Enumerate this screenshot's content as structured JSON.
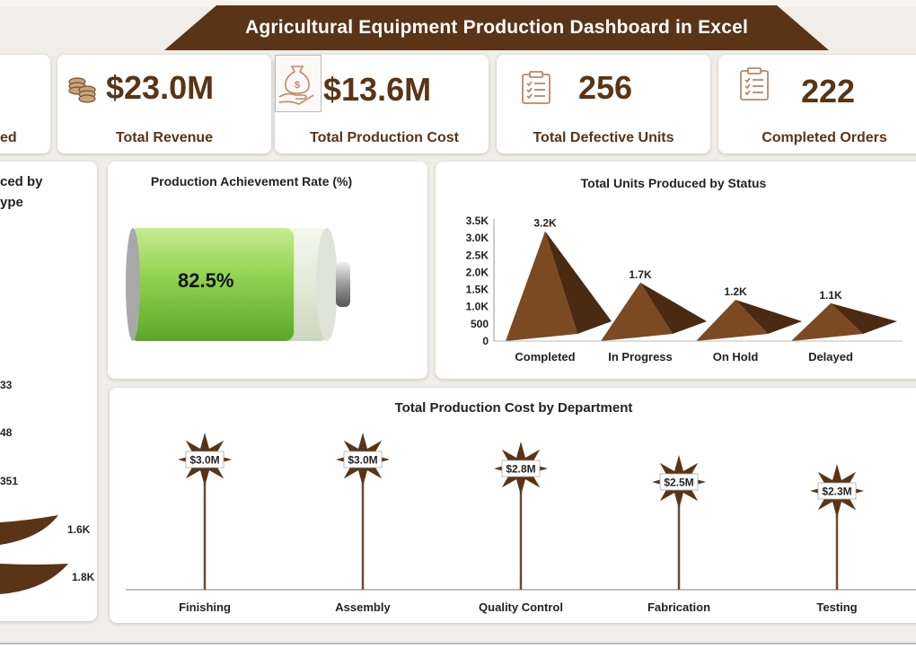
{
  "title": "Agricultural Equipment Production Dashboard in Excel",
  "kpis": [
    {
      "value": "",
      "label": "ed",
      "icon": "none"
    },
    {
      "value": "$23.0M",
      "label": "Total Revenue",
      "icon": "coins-icon"
    },
    {
      "value": "$13.6M",
      "label": "Total Production Cost",
      "icon": "money-bag-hand-icon"
    },
    {
      "value": "256",
      "label": "Total Defective Units",
      "icon": "clipboard-checklist-icon"
    },
    {
      "value": "222",
      "label": "Completed Orders",
      "icon": "clipboard-checklist-icon"
    }
  ],
  "left_panel": {
    "title_lines": [
      "ced by",
      "ype"
    ],
    "labels": [
      "33",
      "48",
      "351"
    ],
    "area_labels": [
      "1.6K",
      "1.8K"
    ]
  },
  "achievement": {
    "title": "Production Achievement Rate (%)",
    "value": 82.5,
    "value_text": "82.5%"
  },
  "colors": {
    "brown": "#5a3416",
    "pyramid_light": "#7b4a22",
    "pyramid_dark": "#4a2a10",
    "battery_green": "#8fd14f",
    "stem": "#6b4a35"
  },
  "chart_data": [
    {
      "type": "bar",
      "title": "Total Units Produced by Status",
      "categories": [
        "Completed",
        "In Progress",
        "On Hold",
        "Delayed"
      ],
      "values": [
        3200,
        1700,
        1200,
        1100
      ],
      "data_labels": [
        "3.2K",
        "1.7K",
        "1.2K",
        "1.1K"
      ],
      "ylim": [
        0,
        3500
      ],
      "yticks": [
        0,
        500,
        1000,
        1500,
        2000,
        2500,
        3000,
        3500
      ],
      "ytick_labels": [
        "0",
        "500",
        "1.0K",
        "1.5K",
        "2.0K",
        "2.5K",
        "3.0K",
        "3.5K"
      ],
      "xlabel": "",
      "ylabel": "",
      "grid": false
    },
    {
      "type": "scatter",
      "title": "Total Production Cost by Department",
      "categories": [
        "Finishing",
        "Assembly",
        "Quality Control",
        "Fabrication",
        "Testing"
      ],
      "values": [
        3.0,
        3.0,
        2.8,
        2.5,
        2.3
      ],
      "data_labels": [
        "$3.0M",
        "$3.0M",
        "$2.8M",
        "$2.5M",
        "$2.3M"
      ],
      "xlabel": "",
      "ylabel": "",
      "grid": false
    }
  ]
}
